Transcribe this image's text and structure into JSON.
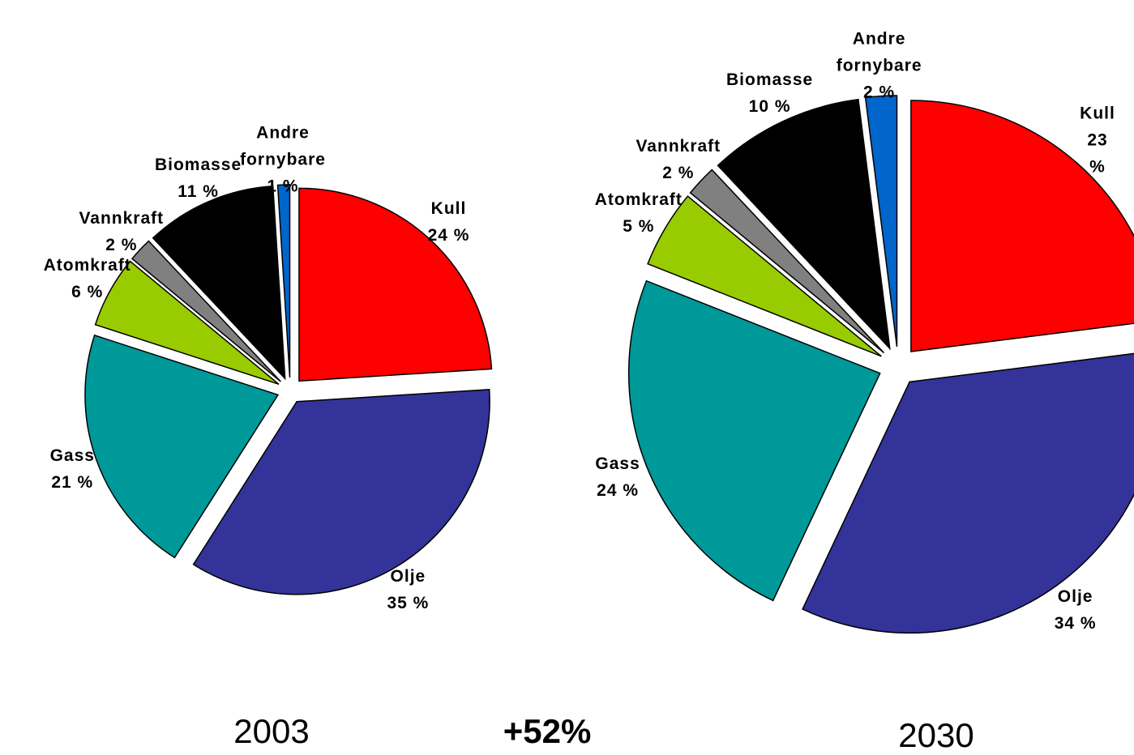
{
  "chart_data": [
    {
      "type": "pie",
      "title": "2003",
      "annotation": "+52%",
      "categories": [
        "Kull",
        "Olje",
        "Gass",
        "Atomkraft",
        "Vannkraft",
        "Biomasse",
        "Andre fornybare"
      ],
      "values": [
        24,
        35,
        21,
        6,
        2,
        11,
        1
      ],
      "value_labels": [
        "24 %",
        "35 %",
        "21 %",
        "6 %",
        "2 %",
        "11 %",
        "1 %"
      ],
      "colors": [
        "#ff0000",
        "#333399",
        "#009999",
        "#99cc00",
        "#808080",
        "#000000",
        "#0066cc"
      ]
    },
    {
      "type": "pie",
      "title": "2030",
      "categories": [
        "Kull",
        "Olje",
        "Gass",
        "Atomkraft",
        "Vannkraft",
        "Biomasse",
        "Andre fornybare"
      ],
      "values": [
        23,
        34,
        24,
        5,
        2,
        10,
        2
      ],
      "value_labels": [
        "23 %",
        "34 %",
        "24 %",
        "5 %",
        "2 %",
        "10 %",
        "2 %"
      ],
      "colors": [
        "#ff0000",
        "#333399",
        "#009999",
        "#99cc00",
        "#808080",
        "#000000",
        "#0066cc"
      ]
    }
  ]
}
